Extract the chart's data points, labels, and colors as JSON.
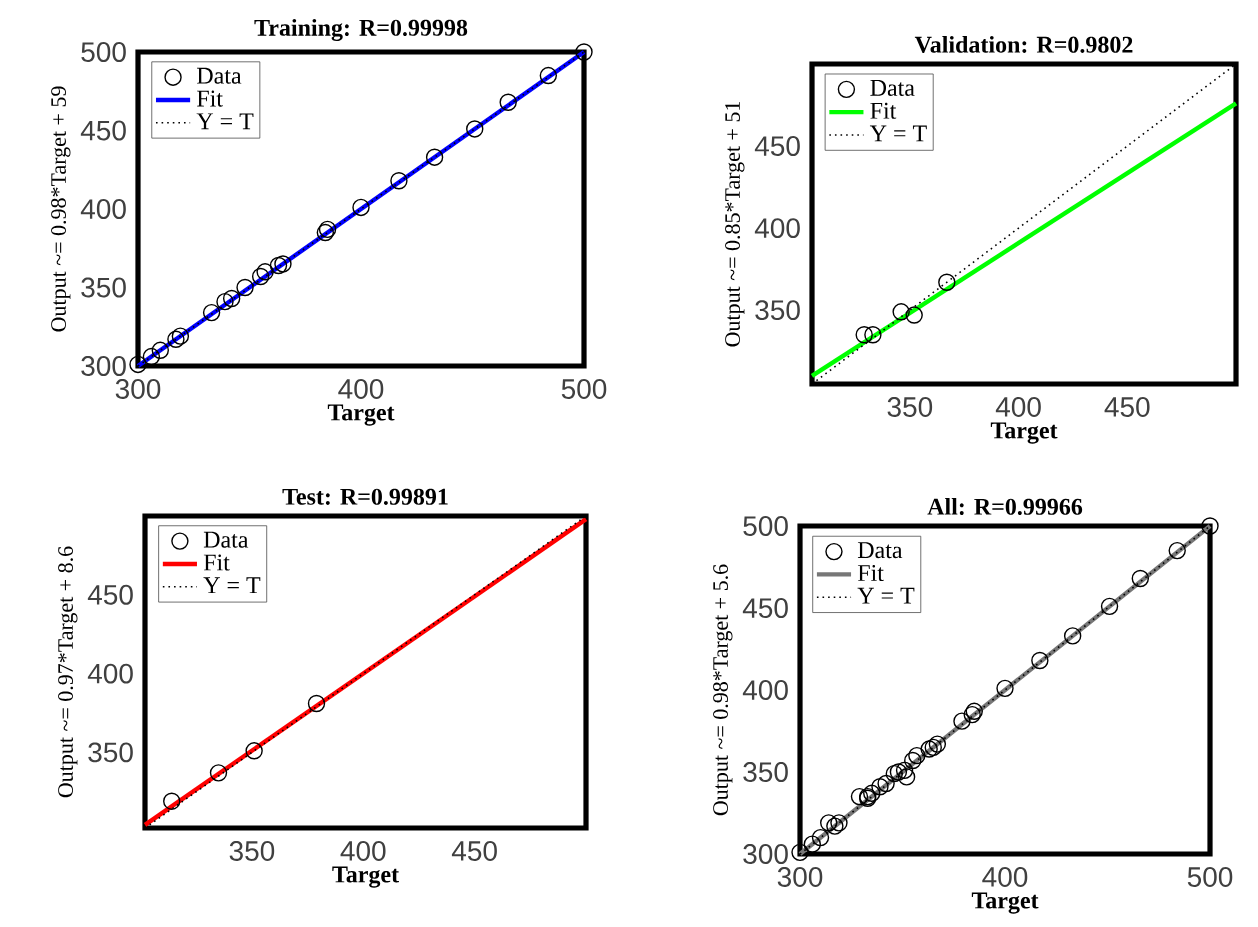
{
  "chart_data": [
    {
      "type": "scatter",
      "title": "Training: R=0.99998",
      "xlabel": "Target",
      "ylabel": "Output ~= 0.98*Target + 59",
      "xlim": [
        300,
        500
      ],
      "ylim": [
        300,
        500
      ],
      "xticks": [
        300,
        400,
        500
      ],
      "yticks": [
        300,
        350,
        400,
        450,
        500
      ],
      "grid": false,
      "legend": "top left",
      "series": [
        {
          "name": "Data",
          "marker": "circle",
          "color": "#000000",
          "x": [
            300,
            306,
            310,
            317,
            319,
            333,
            339,
            342,
            348,
            355,
            357,
            363,
            365,
            384,
            385,
            400,
            417,
            433,
            451,
            466,
            484,
            500
          ],
          "values": [
            301,
            306,
            310,
            317,
            319,
            334,
            341,
            343,
            350,
            357,
            360,
            364,
            365,
            385,
            387,
            401,
            418,
            433,
            451,
            468,
            485,
            500
          ]
        },
        {
          "name": "Fit",
          "type": "line",
          "line_style": "solid",
          "color": "#0000ff",
          "x": [
            300,
            500
          ],
          "values": [
            300,
            500
          ]
        },
        {
          "name": "Y = T",
          "type": "line",
          "line_style": "dotted",
          "color": "#000000",
          "x": [
            300,
            500
          ],
          "values": [
            300,
            500
          ]
        }
      ]
    },
    {
      "type": "scatter",
      "title": "Validation: R=0.9802",
      "xlabel": "Target",
      "ylabel": "Output ~= 0.85*Target + 51",
      "xlim": [
        305,
        500
      ],
      "ylim": [
        305,
        500
      ],
      "xticks": [
        350,
        400,
        450
      ],
      "yticks": [
        350,
        400,
        450
      ],
      "grid": false,
      "legend": "top left",
      "series": [
        {
          "name": "Data",
          "marker": "circle",
          "color": "#000000",
          "x": [
            329,
            333,
            346,
            352,
            367
          ],
          "values": [
            335,
            335,
            349,
            347,
            367
          ]
        },
        {
          "name": "Fit",
          "type": "line",
          "line_style": "solid",
          "color": "#00ff00",
          "x": [
            305,
            500
          ],
          "values": [
            310,
            476
          ]
        },
        {
          "name": "Y = T",
          "type": "line",
          "line_style": "dotted",
          "color": "#000000",
          "x": [
            305,
            500
          ],
          "values": [
            305,
            500
          ]
        }
      ]
    },
    {
      "type": "scatter",
      "title": "Test: R=0.99891",
      "xlabel": "Target",
      "ylabel": "Output ~= 0.97*Target + 8.6",
      "xlim": [
        302,
        500
      ],
      "ylim": [
        302,
        500
      ],
      "xticks": [
        350,
        400,
        450
      ],
      "yticks": [
        350,
        400,
        450
      ],
      "grid": false,
      "legend": "top left",
      "series": [
        {
          "name": "Data",
          "marker": "circle",
          "color": "#000000",
          "x": [
            314,
            335,
            351,
            379
          ],
          "values": [
            319,
            337,
            351,
            381
          ]
        },
        {
          "name": "Fit",
          "type": "line",
          "line_style": "solid",
          "color": "#ff0000",
          "x": [
            302,
            500
          ],
          "values": [
            304,
            498
          ]
        },
        {
          "name": "Y = T",
          "type": "line",
          "line_style": "dotted",
          "color": "#000000",
          "x": [
            302,
            500
          ],
          "values": [
            302,
            500
          ]
        }
      ]
    },
    {
      "type": "scatter",
      "title": "All: R=0.99966",
      "xlabel": "Target",
      "ylabel": "Output ~= 0.98*Target + 5.6",
      "xlim": [
        300,
        500
      ],
      "ylim": [
        300,
        500
      ],
      "xticks": [
        300,
        400,
        500
      ],
      "yticks": [
        300,
        350,
        400,
        450,
        500
      ],
      "grid": false,
      "legend": "top left",
      "series": [
        {
          "name": "Data",
          "marker": "circle",
          "color": "#000000",
          "x": [
            300,
            306,
            310,
            317,
            319,
            333,
            339,
            342,
            348,
            355,
            357,
            363,
            365,
            384,
            385,
            400,
            417,
            433,
            451,
            466,
            484,
            500,
            329,
            333,
            346,
            352,
            367,
            314,
            335,
            351,
            379
          ],
          "values": [
            301,
            306,
            310,
            317,
            319,
            334,
            341,
            343,
            350,
            357,
            360,
            364,
            365,
            385,
            387,
            401,
            418,
            433,
            451,
            468,
            485,
            500,
            335,
            335,
            349,
            347,
            367,
            319,
            337,
            351,
            381
          ]
        },
        {
          "name": "Fit",
          "type": "line",
          "line_style": "solid",
          "color": "#777777",
          "x": [
            300,
            500
          ],
          "values": [
            300,
            500
          ]
        },
        {
          "name": "Y = T",
          "type": "line",
          "line_style": "dotted",
          "color": "#000000",
          "x": [
            300,
            500
          ],
          "values": [
            300,
            500
          ]
        }
      ]
    }
  ]
}
